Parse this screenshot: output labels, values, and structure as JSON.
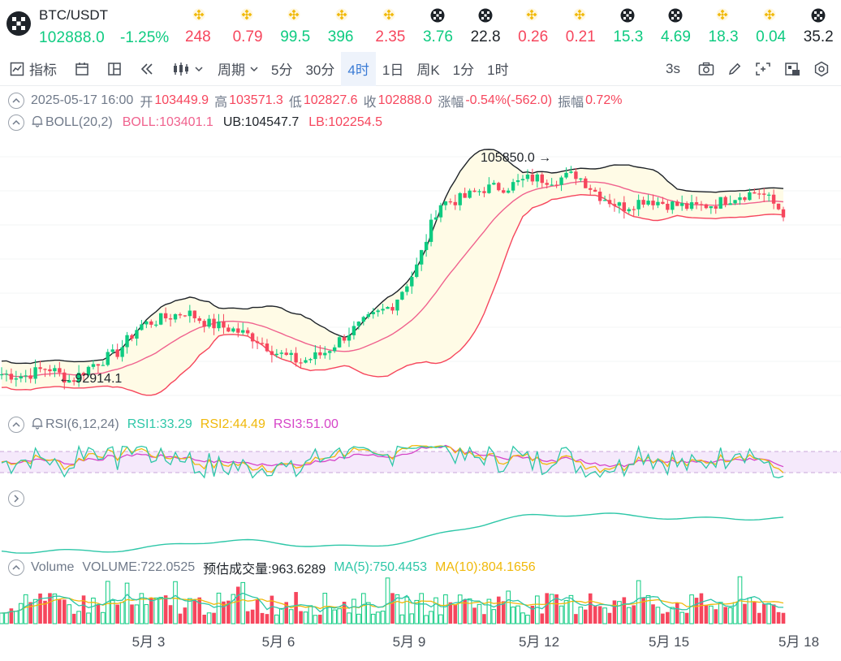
{
  "header": {
    "pair": "BTC/USDT",
    "price": "102888.0",
    "change": "-1.25%",
    "tickers": [
      {
        "icon": "binance-icon",
        "value": "248",
        "dir": "down"
      },
      {
        "icon": "binance-icon",
        "value": "0.79",
        "dir": "down"
      },
      {
        "icon": "binance-icon",
        "value": "99.5",
        "dir": "up"
      },
      {
        "icon": "binance-icon",
        "value": "396",
        "dir": "up"
      },
      {
        "icon": "binance-icon",
        "value": "2.35",
        "dir": "down"
      },
      {
        "icon": "okx-icon",
        "value": "3.76",
        "dir": "up"
      },
      {
        "icon": "okx-icon",
        "value": "22.8",
        "dir": "neutral"
      },
      {
        "icon": "binance-icon",
        "value": "0.26",
        "dir": "down"
      },
      {
        "icon": "binance-icon",
        "value": "0.21",
        "dir": "down"
      },
      {
        "icon": "okx-icon",
        "value": "15.3",
        "dir": "up"
      },
      {
        "icon": "okx-icon",
        "value": "4.69",
        "dir": "up"
      },
      {
        "icon": "binance-icon",
        "value": "18.3",
        "dir": "up"
      },
      {
        "icon": "binance-icon",
        "value": "0.04",
        "dir": "up"
      },
      {
        "icon": "okx-icon",
        "value": "35.2",
        "dir": "neutral"
      }
    ]
  },
  "toolbar": {
    "indicator_label": "指标",
    "period_label": "周期",
    "intervals": [
      "5分",
      "30分",
      "4时",
      "1日",
      "周K",
      "1分",
      "1时"
    ],
    "active_interval": "4时",
    "refresh_label": "3s"
  },
  "ohlc": {
    "datetime": "2025-05-17 16:00",
    "open_label": "开",
    "open": "103449.9",
    "high_label": "高",
    "high": "103571.3",
    "low_label": "低",
    "low": "102827.6",
    "close_label": "收",
    "close": "102888.0",
    "change_label": "涨幅",
    "change": "-0.54%(-562.0)",
    "amplitude_label": "振幅",
    "amplitude": "0.72%"
  },
  "boll": {
    "name": "BOLL(20,2)",
    "mid": "BOLL:103401.1",
    "ub": "UB:104547.7",
    "lb": "LB:102254.5"
  },
  "markers": {
    "high": "105850.0",
    "low": "92914.1"
  },
  "rsi": {
    "name": "RSI(6,12,24)",
    "rsi1": "RSI1:33.29",
    "rsi2": "RSI2:44.49",
    "rsi3": "RSI3:51.00"
  },
  "volume": {
    "name": "Volume",
    "volume": "VOLUME:722.0525",
    "estimate": "预估成交量:963.6289",
    "ma5": "MA(5):750.4453",
    "ma10": "MA(10):804.1656"
  },
  "x_axis": [
    "5月 3",
    "5月 6",
    "5月 9",
    "5月 12",
    "5月 15",
    "5月 18"
  ],
  "colors": {
    "up": "#0ecb81",
    "down": "#f6465d",
    "mid": "#f0628e",
    "ub": "#1e2329",
    "band_fill": "#fffbe6",
    "rsi1": "#2ec7a8",
    "rsi2": "#f0b90b",
    "rsi3": "#d645c8",
    "active": "#3a7bd5"
  },
  "chart_data": {
    "type": "candlestick",
    "interval": "4h",
    "approx_close_path": [
      93600,
      93500,
      94000,
      93200,
      94200,
      94800,
      96400,
      96800,
      97200,
      96500,
      96200,
      95700,
      94800,
      94300,
      94800,
      95900,
      96800,
      97600,
      99600,
      103400,
      103700,
      104300,
      104400,
      104900,
      104800,
      105100,
      103900,
      103200,
      103700,
      103400,
      103200,
      103400,
      103900,
      104100,
      102900
    ]
  }
}
